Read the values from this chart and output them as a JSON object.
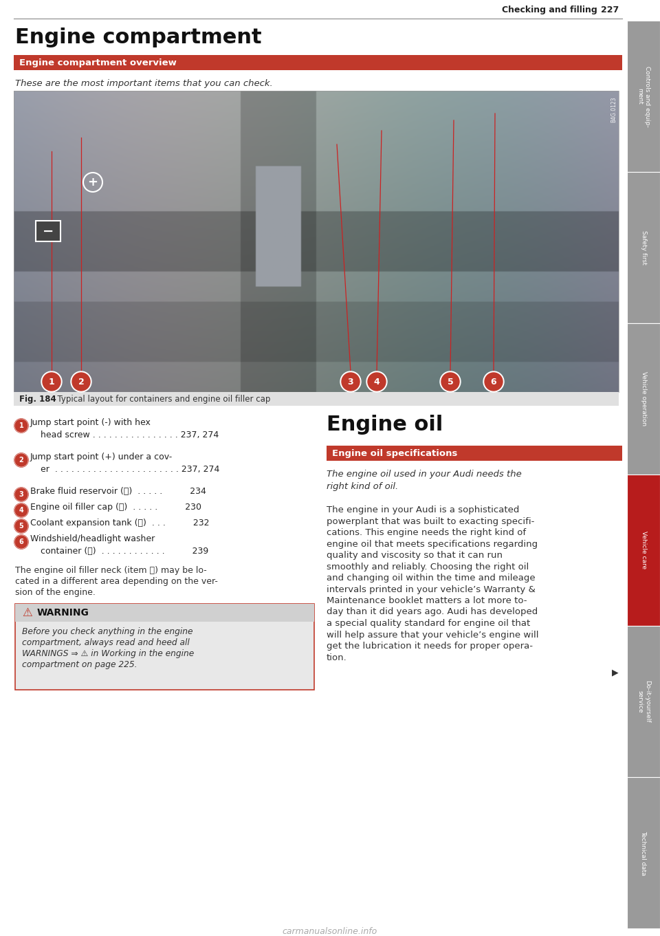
{
  "page_bg": "#ffffff",
  "header_line_color": "#888888",
  "header_text": "Checking and filling",
  "header_page": "227",
  "main_title": "Engine compartment",
  "red_bar_text": "Engine compartment overview",
  "red_bar_bg": "#c0392b",
  "italic_intro": "These are the most important items that you can check.",
  "fig_caption_bold": "Fig. 184",
  "fig_caption_normal": "  Typical layout for containers and engine oil filler cap",
  "item1_line1": "Jump start point (-) with hex",
  "item1_line2": "head screw . . . . . . . . . . . . . . . . 237, 274",
  "item2_line1": "Jump start point (+) under a cov-",
  "item2_line2": "er  . . . . . . . . . . . . . . . . . . . . . . . 237, 274",
  "item3": "Brake fluid reservoir (Ⓢ)  . . . . .          234",
  "item4": "Engine oil filler cap (Ⓣ)  . . . . .          230",
  "item5": "Coolant expansion tank (Ⓤ)  . . .          232",
  "item6_line1": "Windshield/headlight washer",
  "item6_line2": "container (Ⓥ)  . . . . . . . . . . . .          239",
  "note_line1": "The engine oil filler neck (item Ⓣ) may be lo-",
  "note_line2": "cated in a different area depending on the ver-",
  "note_line3": "sion of the engine.",
  "warn_header": "WARNING",
  "warn_body_lines": [
    "Before you check anything in the engine",
    "compartment, always read and heed all",
    "WARNINGS ⇒ ⚠ in Working in the engine",
    "compartment on page 225."
  ],
  "right_title": "Engine oil",
  "right_red_bar": "Engine oil specifications",
  "right_italic1": "The engine oil used in your Audi needs the",
  "right_italic2": "right kind of oil.",
  "right_body_lines": [
    "The engine in your Audi is a sophisticated",
    "powerplant that was built to exacting specifi-",
    "cations. This engine needs the right kind of",
    "engine oil that meets specifications regarding",
    "quality and viscosity so that it can run",
    "smoothly and reliably. Choosing the right oil",
    "and changing oil within the time and mileage",
    "intervals printed in your vehicle’s Warranty &",
    "Maintenance booklet matters a lot more to-",
    "day than it did years ago. Audi has developed",
    "a special quality standard for engine oil that",
    "will help assure that your vehicle’s engine will",
    "get the lubrication it needs for proper opera-",
    "tion."
  ],
  "sidebar_labels": [
    "Controls and equip-\nment",
    "Safety first",
    "Vehicle operation",
    "Vehicle care",
    "Do-it-yourself\nservice",
    "Technical data"
  ],
  "sidebar_colors": [
    "#9a9a9a",
    "#9a9a9a",
    "#9a9a9a",
    "#b71c1c",
    "#9a9a9a",
    "#9a9a9a"
  ],
  "footer_text": "carmanualsonline.info",
  "img_bg_top": "#a0a8b0",
  "img_bg_bottom": "#707880",
  "circle_color": "#c0392b",
  "warn_box_bg": "#e8e8e8",
  "warn_hdr_bg": "#d0d0d0",
  "warn_border": "#c0392b",
  "fig_cap_bg": "#e0e0e0"
}
